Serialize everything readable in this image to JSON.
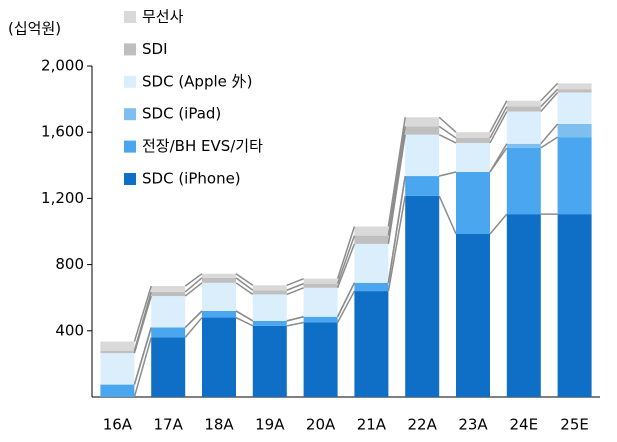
{
  "chart_data": {
    "type": "stacked_bar",
    "unit_label": "(십억원)",
    "categories": [
      "16A",
      "17A",
      "18A",
      "19A",
      "20A",
      "21A",
      "22A",
      "23A",
      "24E",
      "25E"
    ],
    "series": [
      {
        "name": "SDC (iPhone)",
        "color": "#0f6fc6",
        "values": [
          0,
          360,
          480,
          430,
          450,
          640,
          1215,
          985,
          1105,
          1105
        ]
      },
      {
        "name": "전장/BH EVS/기타",
        "color": "#4aa6ee",
        "values": [
          75,
          60,
          40,
          30,
          35,
          50,
          120,
          375,
          400,
          465
        ]
      },
      {
        "name": "SDC (iPad)",
        "color": "#7fbff0",
        "values": [
          0,
          0,
          0,
          0,
          0,
          0,
          0,
          0,
          25,
          80
        ]
      },
      {
        "name": "SDC (Apple 外)",
        "color": "#dbeefc",
        "values": [
          190,
          190,
          170,
          160,
          175,
          235,
          250,
          175,
          195,
          190
        ]
      },
      {
        "name": "SDI",
        "color": "#bfbfbf",
        "values": [
          15,
          25,
          30,
          25,
          25,
          50,
          50,
          30,
          30,
          20
        ]
      },
      {
        "name": "무선사",
        "color": "#d9d9d9",
        "values": [
          55,
          35,
          25,
          30,
          30,
          55,
          55,
          35,
          35,
          35
        ]
      }
    ],
    "ylim": [
      0,
      2000
    ],
    "yticks": [
      {
        "value": 400,
        "label": "400"
      },
      {
        "value": 800,
        "label": "800"
      },
      {
        "value": 1200,
        "label": "1,200"
      },
      {
        "value": 1600,
        "label": "1,600"
      },
      {
        "value": 2000,
        "label": "2,000"
      }
    ],
    "legend": "top-left",
    "connector_lines": true
  }
}
